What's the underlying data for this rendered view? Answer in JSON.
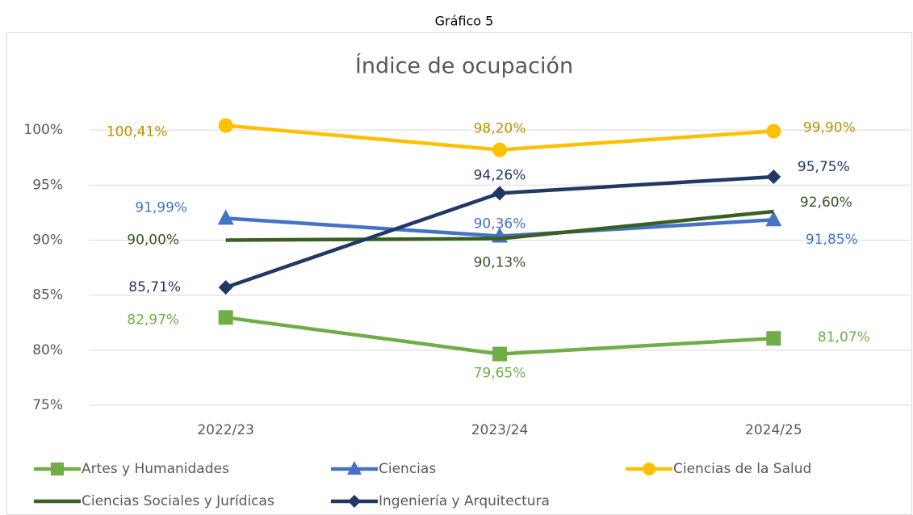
{
  "caption": "Gráfico 5",
  "chart_data": {
    "type": "line",
    "title": "Índice de ocupación",
    "categories": [
      "2022/23",
      "2023/24",
      "2024/25"
    ],
    "ylim": [
      75,
      102.5
    ],
    "yticks": [
      {
        "value": 75,
        "label": "75%"
      },
      {
        "value": 80,
        "label": "80%"
      },
      {
        "value": 85,
        "label": "85%"
      },
      {
        "value": 90,
        "label": "90%"
      },
      {
        "value": 95,
        "label": "95%"
      },
      {
        "value": 100,
        "label": "100%"
      }
    ],
    "grid": true,
    "legend": "bottom",
    "series": [
      {
        "name": "Artes y Humanidades",
        "color": "#70ad47",
        "label_color": "#70ad47",
        "marker": "square",
        "values": [
          82.97,
          79.65,
          81.07
        ],
        "value_labels": [
          "82,97%",
          "79,65%",
          "81,07%"
        ]
      },
      {
        "name": "Ciencias",
        "color": "#4472c4",
        "label_color": "#4472c4",
        "marker": "triangle",
        "values": [
          91.99,
          90.36,
          91.85
        ],
        "value_labels": [
          "91,99%",
          "90,36%",
          "91,85%"
        ]
      },
      {
        "name": "Ciencias de la Salud",
        "color": "#ffc000",
        "label_color": "#bf9000",
        "marker": "circle",
        "values": [
          100.41,
          98.2,
          99.9
        ],
        "value_labels": [
          "100,41%",
          "98,20%",
          "99,90%"
        ]
      },
      {
        "name": "Ciencias Sociales y Jurídicas",
        "color": "#3b5e22",
        "label_color": "#375623",
        "marker": "none",
        "values": [
          90.0,
          90.13,
          92.6
        ],
        "value_labels": [
          "90,00%",
          "90,13%",
          "92,60%"
        ]
      },
      {
        "name": "Ingeniería y Arquitectura",
        "color": "#203864",
        "label_color": "#203864",
        "marker": "diamond",
        "values": [
          85.71,
          94.26,
          95.75
        ],
        "value_labels": [
          "85,71%",
          "94,26%",
          "95,75%"
        ]
      }
    ]
  }
}
